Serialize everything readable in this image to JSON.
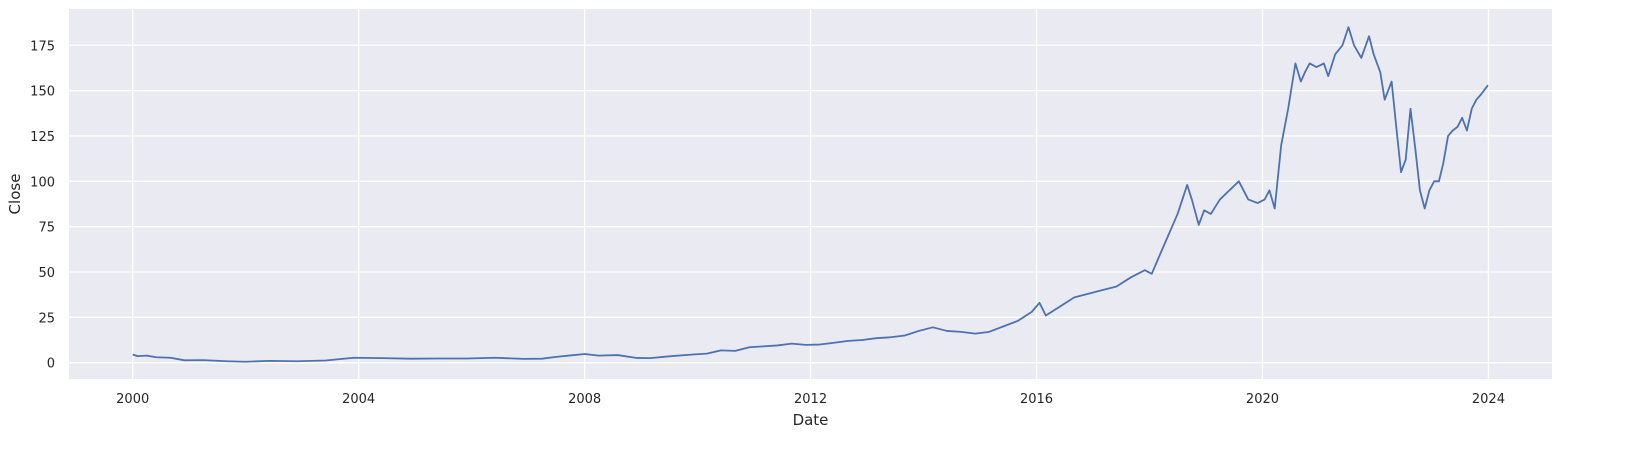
{
  "chart_data": {
    "type": "line",
    "title": "",
    "xlabel": "Date",
    "ylabel": "Close",
    "xlim": [
      "1998-11-15",
      "2025-02-15"
    ],
    "ylim": [
      -9,
      195
    ],
    "x_ticks": [
      "2000",
      "2004",
      "2008",
      "2012",
      "2016",
      "2020",
      "2024"
    ],
    "y_ticks": [
      0,
      25,
      50,
      75,
      100,
      125,
      150,
      175
    ],
    "grid": true,
    "legend": "none",
    "colors": {
      "background": "#eaeaf2",
      "grid": "#ffffff",
      "line": "#4c72b0"
    },
    "series": [
      {
        "x": [
          "2000-01-01",
          "2000-02-01",
          "2000-04-01",
          "2000-06-01",
          "2000-09-01",
          "2000-12-01",
          "2001-04-01",
          "2001-09-01",
          "2002-01-01",
          "2002-06-01",
          "2002-12-01",
          "2003-06-01",
          "2003-12-01",
          "2004-06-01",
          "2004-12-01",
          "2005-06-01",
          "2005-12-01",
          "2006-06-01",
          "2006-12-01",
          "2007-04-01",
          "2007-07-01",
          "2007-10-01",
          "2008-01-01",
          "2008-04-01",
          "2008-08-01",
          "2008-12-01",
          "2009-03-01",
          "2009-07-01",
          "2009-12-01",
          "2010-03-01",
          "2010-06-01",
          "2010-09-01",
          "2010-12-01",
          "2011-03-01",
          "2011-06-01",
          "2011-09-01",
          "2011-12-01",
          "2012-03-01",
          "2012-06-01",
          "2012-09-01",
          "2012-12-01",
          "2013-03-01",
          "2013-06-01",
          "2013-09-01",
          "2013-12-01",
          "2014-03-01",
          "2014-06-01",
          "2014-09-01",
          "2014-12-01",
          "2015-03-01",
          "2015-06-01",
          "2015-09-01",
          "2015-12-01",
          "2016-01-20",
          "2016-03-01",
          "2016-06-01",
          "2016-09-01",
          "2016-12-01",
          "2017-03-01",
          "2017-06-01",
          "2017-09-01",
          "2017-12-01",
          "2018-01-15",
          "2018-03-01",
          "2018-05-01",
          "2018-07-01",
          "2018-09-01",
          "2018-10-01",
          "2018-11-15",
          "2018-12-20",
          "2019-02-01",
          "2019-04-01",
          "2019-06-01",
          "2019-08-01",
          "2019-10-01",
          "2019-12-01",
          "2020-01-15",
          "2020-02-15",
          "2020-03-20",
          "2020-05-01",
          "2020-06-15",
          "2020-08-01",
          "2020-09-05",
          "2020-10-01",
          "2020-11-01",
          "2020-12-15",
          "2021-02-01",
          "2021-03-01",
          "2021-04-15",
          "2021-06-01",
          "2021-07-10",
          "2021-08-15",
          "2021-10-01",
          "2021-11-20",
          "2021-12-20",
          "2022-02-01",
          "2022-03-01",
          "2022-04-15",
          "2022-05-15",
          "2022-06-15",
          "2022-07-15",
          "2022-08-15",
          "2022-09-15",
          "2022-10-15",
          "2022-11-15",
          "2022-12-15",
          "2023-01-15",
          "2023-02-15",
          "2023-03-15",
          "2023-04-15",
          "2023-05-15",
          "2023-06-15",
          "2023-07-15",
          "2023-08-15",
          "2023-09-15",
          "2023-10-15",
          "2023-11-15",
          "2023-12-29"
        ],
        "y": [
          4.5,
          3.6,
          3.9,
          3.0,
          2.7,
          1.3,
          1.4,
          0.8,
          0.5,
          1.0,
          0.8,
          1.2,
          2.7,
          2.5,
          2.2,
          2.3,
          2.3,
          2.7,
          2.1,
          2.2,
          3.2,
          4.0,
          4.8,
          3.9,
          4.2,
          2.6,
          2.5,
          3.5,
          4.5,
          5.0,
          6.8,
          6.5,
          8.5,
          9.0,
          9.5,
          10.5,
          9.8,
          10.0,
          11.0,
          12.0,
          12.5,
          13.5,
          14.0,
          15.0,
          17.5,
          19.5,
          17.5,
          17.0,
          16.0,
          17.0,
          20.0,
          23.0,
          28.0,
          33.0,
          26.0,
          31.0,
          36.0,
          38.0,
          40.0,
          42.0,
          47.0,
          51.0,
          49.0,
          58.0,
          70.0,
          82.0,
          98.0,
          90.0,
          76.0,
          84.0,
          82.0,
          90.0,
          95.0,
          100.0,
          90.0,
          88.0,
          90.0,
          95.0,
          85.0,
          120.0,
          140.0,
          165.0,
          155.0,
          160.0,
          165.0,
          163.0,
          165.0,
          158.0,
          170.0,
          175.0,
          185.0,
          175.0,
          168.0,
          180.0,
          170.0,
          160.0,
          145.0,
          155.0,
          130.0,
          105.0,
          112.0,
          140.0,
          118.0,
          95.0,
          85.0,
          95.0,
          100.0,
          100.0,
          110.0,
          125.0,
          128.0,
          130.0,
          135.0,
          128.0,
          140.0,
          145.0,
          148.0,
          153.0
        ]
      }
    ]
  }
}
